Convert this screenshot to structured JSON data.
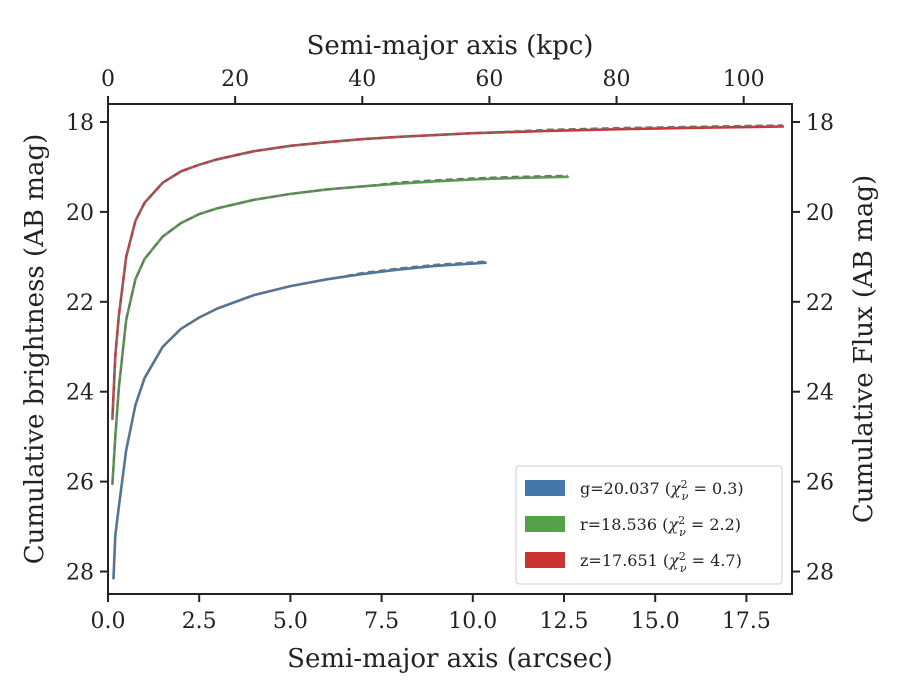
{
  "chart_data": {
    "type": "line",
    "xlabel": "Semi-major axis (arcsec)",
    "x2label": "Semi-major axis (kpc)",
    "ylabel": "Cumulative brightness (AB mag)",
    "y2label": "Cumulative Flux (AB mag)",
    "xlim": [
      0,
      18.75
    ],
    "x2lim": [
      0,
      107.6
    ],
    "ylim": [
      28.5,
      17.6
    ],
    "y_inverted": true,
    "xticks": [
      "0.0",
      "2.5",
      "5.0",
      "7.5",
      "10.0",
      "12.5",
      "15.0",
      "17.5"
    ],
    "xtick_values": [
      0,
      2.5,
      5,
      7.5,
      10,
      12.5,
      15,
      17.5
    ],
    "x2ticks": [
      "0",
      "20",
      "40",
      "60",
      "80",
      "100"
    ],
    "x2tick_values": [
      0,
      20,
      40,
      60,
      80,
      100
    ],
    "yticks": [
      "18",
      "20",
      "22",
      "24",
      "26",
      "28"
    ],
    "ytick_values": [
      18,
      20,
      22,
      24,
      26,
      28
    ],
    "grid": false,
    "legend_position": "bottom-right",
    "series": [
      {
        "name": "g=20.037 (χ²ᵥ = 0.3)",
        "label_prefix": "g=20.037 (",
        "label_chi": "χ",
        "label_sub": "ν",
        "label_sup": "2",
        "label_suffix": " = 0.3)",
        "color": "#4477aa",
        "points": [
          [
            0.15,
            28.15
          ],
          [
            0.2,
            27.2
          ],
          [
            0.3,
            26.55
          ],
          [
            0.5,
            25.3
          ],
          [
            0.75,
            24.3
          ],
          [
            1.0,
            23.7
          ],
          [
            1.5,
            23.0
          ],
          [
            2.0,
            22.6
          ],
          [
            2.5,
            22.35
          ],
          [
            3.0,
            22.15
          ],
          [
            4.0,
            21.85
          ],
          [
            5.0,
            21.65
          ],
          [
            6.0,
            21.5
          ],
          [
            7.0,
            21.38
          ],
          [
            8.0,
            21.28
          ],
          [
            9.0,
            21.2
          ],
          [
            10.0,
            21.15
          ],
          [
            10.35,
            21.13
          ]
        ]
      },
      {
        "name": "r=18.536 (χ²ᵥ = 2.2)",
        "label_prefix": "r=18.536 (",
        "label_chi": "χ",
        "label_sub": "ν",
        "label_sup": "2",
        "label_suffix": " = 2.2)",
        "color": "#55a14a",
        "points": [
          [
            0.12,
            26.05
          ],
          [
            0.2,
            25.0
          ],
          [
            0.3,
            23.9
          ],
          [
            0.5,
            22.4
          ],
          [
            0.75,
            21.5
          ],
          [
            1.0,
            21.05
          ],
          [
            1.5,
            20.55
          ],
          [
            2.0,
            20.25
          ],
          [
            2.5,
            20.05
          ],
          [
            3.0,
            19.92
          ],
          [
            4.0,
            19.73
          ],
          [
            5.0,
            19.6
          ],
          [
            6.0,
            19.5
          ],
          [
            7.0,
            19.43
          ],
          [
            8.0,
            19.37
          ],
          [
            9.0,
            19.32
          ],
          [
            10.0,
            19.28
          ],
          [
            11.0,
            19.25
          ],
          [
            12.0,
            19.23
          ],
          [
            12.6,
            19.22
          ]
        ]
      },
      {
        "name": "z=17.651 (χ²ᵥ = 4.7)",
        "label_prefix": "z=17.651 (",
        "label_chi": "χ",
        "label_sub": "ν",
        "label_sup": "2",
        "label_suffix": " = 4.7)",
        "color": "#cc3333",
        "points": [
          [
            0.12,
            24.6
          ],
          [
            0.2,
            23.2
          ],
          [
            0.3,
            22.3
          ],
          [
            0.5,
            21.0
          ],
          [
            0.75,
            20.2
          ],
          [
            1.0,
            19.8
          ],
          [
            1.5,
            19.35
          ],
          [
            2.0,
            19.1
          ],
          [
            2.5,
            18.95
          ],
          [
            3.0,
            18.83
          ],
          [
            4.0,
            18.65
          ],
          [
            5.0,
            18.53
          ],
          [
            6.0,
            18.45
          ],
          [
            7.0,
            18.38
          ],
          [
            8.0,
            18.33
          ],
          [
            10.0,
            18.25
          ],
          [
            12.0,
            18.2
          ],
          [
            14.0,
            18.16
          ],
          [
            16.0,
            18.13
          ],
          [
            18.5,
            18.1
          ]
        ]
      }
    ],
    "fit_style": {
      "color": "#707070",
      "dash": "dashed"
    }
  }
}
